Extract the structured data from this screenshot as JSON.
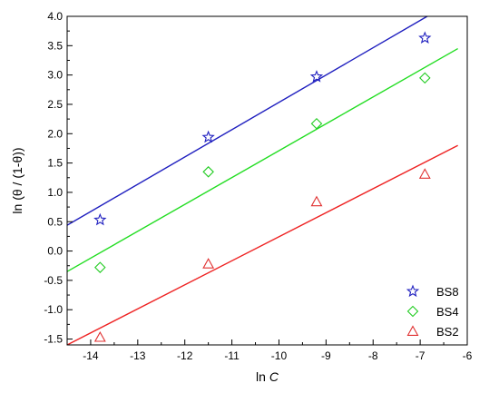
{
  "chart_data": {
    "type": "scatter",
    "xlabel": "ln C",
    "xlabel_prefix": "ln ",
    "xlabel_italic": "C",
    "ylabel": "ln (θ / (1-θ))",
    "xlim": [
      -14.5,
      -6
    ],
    "ylim": [
      -1.6,
      4.0
    ],
    "x_ticks": [
      -14,
      -13,
      -12,
      -11,
      -10,
      -9,
      -8,
      -7,
      -6
    ],
    "x_tick_labels": [
      "-14",
      "-13",
      "-12",
      "-11",
      "-10",
      "-9",
      "-8",
      "-7",
      "-6"
    ],
    "y_ticks": [
      -1.5,
      -1.0,
      -0.5,
      0.0,
      0.5,
      1.0,
      1.5,
      2.0,
      2.5,
      3.0,
      3.5,
      4.0
    ],
    "y_tick_labels": [
      "-1.5",
      "-1.0",
      "-0.5",
      "0.0",
      "0.5",
      "1.0",
      "1.5",
      "2.0",
      "2.5",
      "3.0",
      "3.5",
      "4.0"
    ],
    "legend_position": "bottom-right",
    "grid": false,
    "series": [
      {
        "name": "BS8",
        "marker": "star",
        "color": "#2020c0",
        "line_color": "#1f1fbf",
        "x": [
          -13.8,
          -11.5,
          -9.2,
          -6.9
        ],
        "y": [
          0.53,
          1.94,
          2.97,
          3.63
        ],
        "fit": {
          "x": [
            -14.5,
            -6.85
          ],
          "y": [
            0.44,
            4.0
          ]
        }
      },
      {
        "name": "BS4",
        "marker": "diamond",
        "color": "#22cc22",
        "line_color": "#22dd22",
        "x": [
          -13.8,
          -11.5,
          -9.2,
          -6.9
        ],
        "y": [
          -0.28,
          1.35,
          2.17,
          2.95
        ],
        "fit": {
          "x": [
            -14.5,
            -6.2
          ],
          "y": [
            -0.35,
            3.45
          ]
        }
      },
      {
        "name": "BS2",
        "marker": "triangle",
        "color": "#e03030",
        "line_color": "#ee2222",
        "x": [
          -13.8,
          -11.5,
          -9.2,
          -6.9
        ],
        "y": [
          -1.47,
          -0.22,
          0.84,
          1.31
        ],
        "fit": {
          "x": [
            -14.5,
            -6.2
          ],
          "y": [
            -1.6,
            1.8
          ]
        }
      }
    ]
  }
}
